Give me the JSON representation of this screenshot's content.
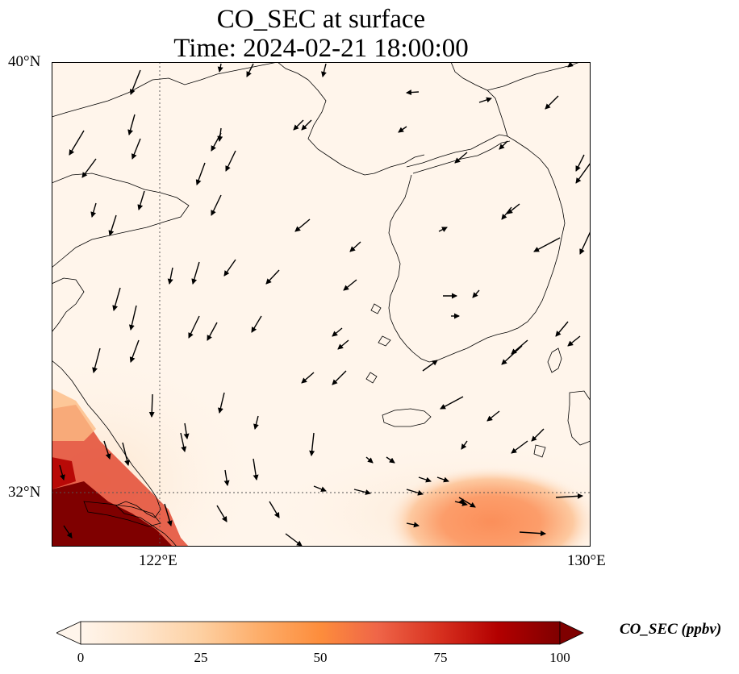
{
  "title": {
    "line1": "CO_SEC at surface",
    "line2": "Time: 2024-02-21 18:00:00"
  },
  "axes": {
    "lat_labels": [
      "40°N",
      "32°N"
    ],
    "lon_labels": [
      "122°E",
      "130°E"
    ]
  },
  "colorbar": {
    "label": "CO_SEC (ppbv)",
    "ticks": [
      "0",
      "25",
      "50",
      "75",
      "100"
    ],
    "min": 0,
    "max": 100,
    "extend": "both",
    "colormap": [
      "#fff5eb",
      "#fee6ce",
      "#fdd0a2",
      "#fdae6b",
      "#fd8d3c",
      "#f16913",
      "#d94801",
      "#a63603",
      "#7f0000"
    ]
  },
  "map_data": {
    "extent": {
      "lon_min": 120,
      "lon_max": 130,
      "lat_min": 31,
      "lat_max": 40
    },
    "gridlines": {
      "lons": [
        122
      ],
      "lats": [
        32
      ],
      "style": "dotted"
    },
    "plumes": [
      {
        "name": "southwest-coast-high",
        "level_ppbv": 100
      },
      {
        "name": "southwest-coast-mid",
        "level_ppbv": 65
      },
      {
        "name": "southeast-sea",
        "level_ppbv": 45
      }
    ]
  }
}
